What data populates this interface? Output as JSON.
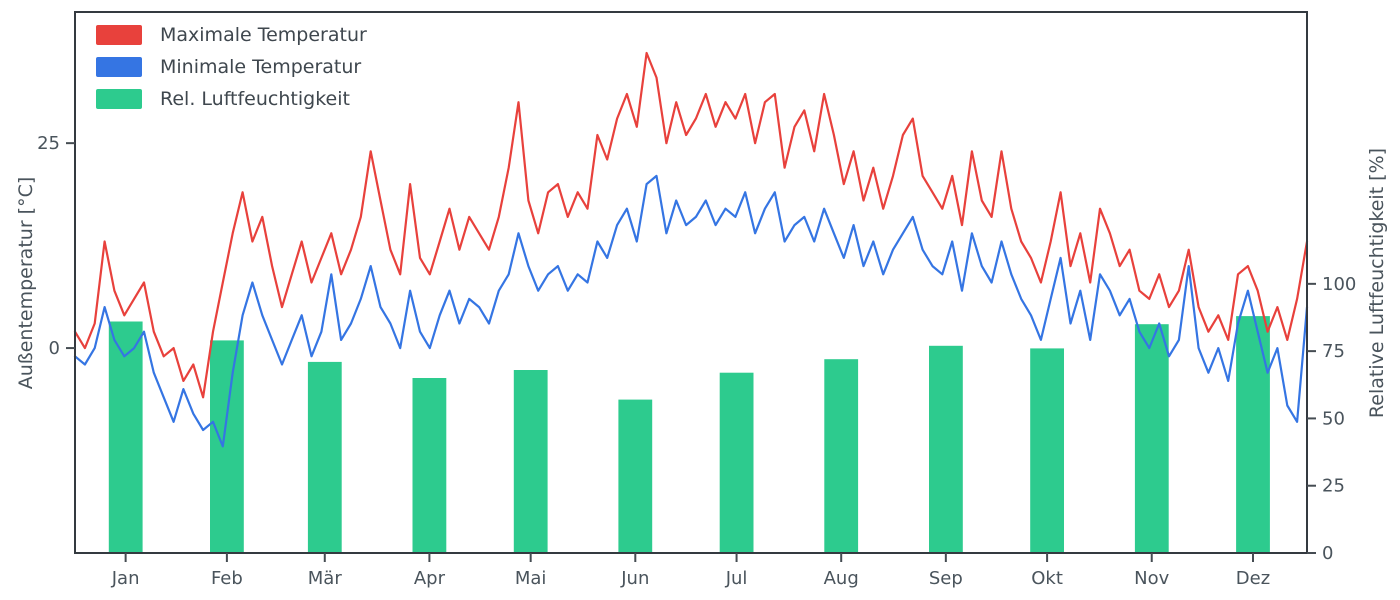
{
  "chart_data": {
    "type": "line+bar",
    "title": "",
    "left_axis": {
      "label": "Außentemperatur [°C]",
      "ticks": [
        0,
        25
      ],
      "range": [
        -25,
        41
      ]
    },
    "right_axis": {
      "label": "Relative Luftfeuchtigkeit [%]",
      "ticks": [
        0,
        25,
        50,
        75,
        100
      ],
      "range": [
        0,
        201
      ]
    },
    "x_axis": {
      "tick_labels": [
        "Jan",
        "Feb",
        "Mär",
        "Apr",
        "Mai",
        "Jun",
        "Jul",
        "Aug",
        "Sep",
        "Okt",
        "Nov",
        "Dez"
      ],
      "tick_days": [
        15,
        45,
        74,
        105,
        135,
        166,
        196,
        227,
        258,
        288,
        319,
        349
      ],
      "range_days": [
        0,
        365
      ]
    },
    "legend": [
      {
        "label": "Maximale Temperatur",
        "color": "#e8413c"
      },
      {
        "label": "Minimale Temperatur",
        "color": "#3575e3"
      },
      {
        "label": "Rel. Luftfeuchtigkeit",
        "color": "#2dcb8e"
      }
    ],
    "series": [
      {
        "id": "max-temp",
        "name": "Maximale Temperatur",
        "type": "line",
        "axis": "left",
        "color": "#e8413c",
        "x_step_days": 2.92,
        "values": [
          2,
          0,
          3,
          13,
          7,
          4,
          6,
          8,
          2,
          -1,
          0,
          -4,
          -2,
          -6,
          2,
          8,
          14,
          19,
          13,
          16,
          10,
          5,
          9,
          13,
          8,
          11,
          14,
          9,
          12,
          16,
          24,
          18,
          12,
          9,
          20,
          11,
          9,
          13,
          17,
          12,
          16,
          14,
          12,
          16,
          22,
          30,
          18,
          14,
          19,
          20,
          16,
          19,
          17,
          26,
          23,
          28,
          31,
          27,
          36,
          33,
          25,
          30,
          26,
          28,
          31,
          27,
          30,
          28,
          31,
          25,
          30,
          31,
          22,
          27,
          29,
          24,
          31,
          26,
          20,
          24,
          18,
          22,
          17,
          21,
          26,
          28,
          21,
          19,
          17,
          21,
          15,
          24,
          18,
          16,
          24,
          17,
          13,
          11,
          8,
          13,
          19,
          10,
          14,
          8,
          17,
          14,
          10,
          12,
          7,
          6,
          9,
          5,
          7,
          12,
          5,
          2,
          4,
          1,
          9,
          10,
          7,
          2,
          5,
          1,
          6,
          13
        ]
      },
      {
        "id": "min-temp",
        "name": "Minimale Temperatur",
        "type": "line",
        "axis": "left",
        "color": "#3575e3",
        "x_step_days": 2.92,
        "values": [
          -1,
          -2,
          0,
          5,
          1,
          -1,
          0,
          2,
          -3,
          -6,
          -9,
          -5,
          -8,
          -10,
          -9,
          -12,
          -3,
          4,
          8,
          4,
          1,
          -2,
          1,
          4,
          -1,
          2,
          9,
          1,
          3,
          6,
          10,
          5,
          3,
          0,
          7,
          2,
          0,
          4,
          7,
          3,
          6,
          5,
          3,
          7,
          9,
          14,
          10,
          7,
          9,
          10,
          7,
          9,
          8,
          13,
          11,
          15,
          17,
          13,
          20,
          21,
          14,
          18,
          15,
          16,
          18,
          15,
          17,
          16,
          19,
          14,
          17,
          19,
          13,
          15,
          16,
          13,
          17,
          14,
          11,
          15,
          10,
          13,
          9,
          12,
          14,
          16,
          12,
          10,
          9,
          13,
          7,
          14,
          10,
          8,
          13,
          9,
          6,
          4,
          1,
          6,
          11,
          3,
          7,
          1,
          9,
          7,
          4,
          6,
          2,
          0,
          3,
          -1,
          1,
          10,
          0,
          -3,
          0,
          -4,
          3,
          7,
          2,
          -3,
          0,
          -7,
          -9,
          5
        ]
      }
    ],
    "humidity_bars": {
      "id": "humidity",
      "name": "Rel. Luftfeuchtigkeit",
      "type": "bar",
      "axis": "right",
      "color": "#2dcb8e",
      "bar_width_days": 10,
      "month_centers_day": [
        15,
        45,
        74,
        105,
        135,
        166,
        196,
        227,
        258,
        288,
        319,
        349
      ],
      "values": [
        86,
        79,
        71,
        65,
        68,
        57,
        67,
        72,
        77,
        76,
        85,
        88
      ]
    },
    "style": {
      "spine_color": "#343a40",
      "tick_color": "#454c52",
      "text_color": "#4a545c",
      "background": "#ffffff"
    }
  }
}
